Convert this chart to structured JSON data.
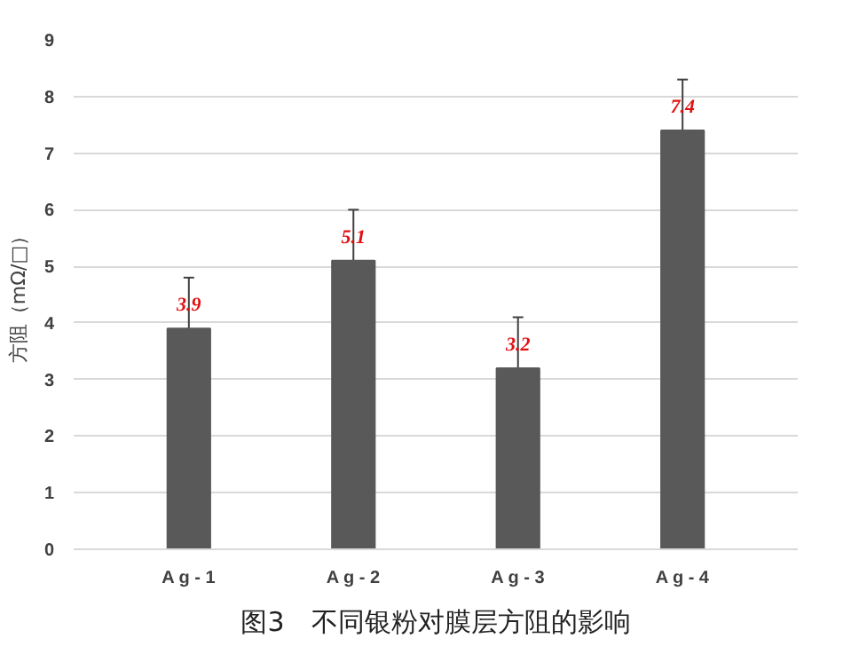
{
  "chart_data": {
    "type": "bar",
    "title": "图3　不同银粉对膜层方阻的影响",
    "ylabel": "方阻（mΩ/□）",
    "categories": [
      "A g - 1",
      "A g - 2",
      "A g - 3",
      "A g - 4"
    ],
    "values": [
      3.9,
      5.1,
      3.2,
      7.4
    ],
    "errors": [
      0.9,
      0.9,
      0.9,
      0.9
    ],
    "color": "#595959",
    "ylim": [
      0,
      9
    ],
    "yticks": [
      0,
      1,
      2,
      3,
      4,
      5,
      6,
      7,
      8,
      9
    ],
    "grid": "y",
    "data_labels": true
  }
}
